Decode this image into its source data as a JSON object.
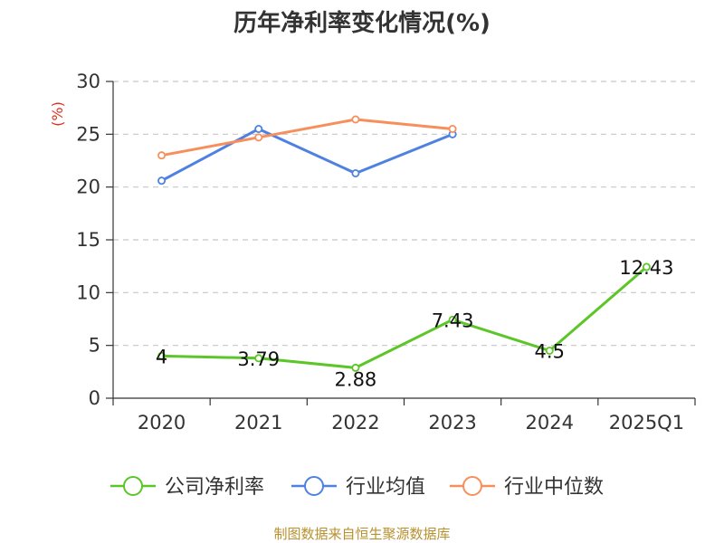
{
  "chart_data": {
    "type": "line",
    "title": "历年净利率变化情况(%)",
    "ylabel": "(%)",
    "categories": [
      "2020",
      "2021",
      "2022",
      "2023",
      "2024",
      "2025Q1"
    ],
    "ylim": [
      0,
      30
    ],
    "yticks": [
      "0",
      "5",
      "10",
      "15",
      "20",
      "25",
      "30"
    ],
    "grid": true,
    "legend_position": "bottom",
    "series": [
      {
        "name": "公司净利率",
        "color": "#5cc628",
        "values": [
          4,
          3.79,
          2.88,
          7.43,
          4.5,
          12.43
        ],
        "labels": [
          "4",
          "3.79",
          "2.88",
          "7.43",
          "4.5",
          "12.43"
        ]
      },
      {
        "name": "行业均值",
        "color": "#4f81e0",
        "values": [
          20.6,
          25.5,
          21.3,
          25.0,
          null,
          null
        ]
      },
      {
        "name": "行业中位数",
        "color": "#f78f5c",
        "values": [
          23.0,
          24.7,
          26.4,
          25.5,
          null,
          null
        ]
      }
    ]
  },
  "footer": {
    "source": "制图数据来自恒生聚源数据库"
  }
}
